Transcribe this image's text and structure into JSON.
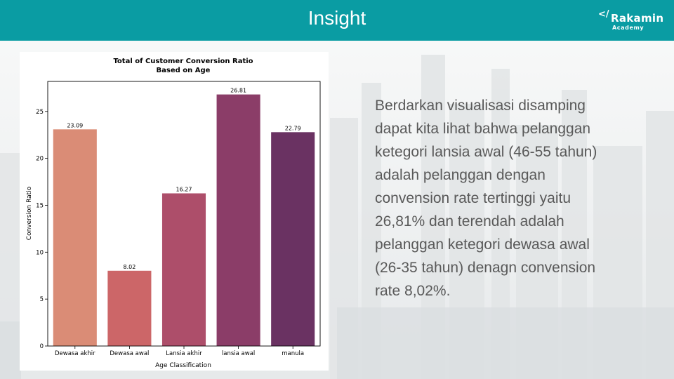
{
  "header": {
    "title": "Insight"
  },
  "logo": {
    "mark": "</",
    "name": "Rakamin",
    "sub": "Academy"
  },
  "chart_data": {
    "type": "bar",
    "title": "Total of Customer Conversion Ratio\nBased on Age",
    "title_lines": [
      "Total of Customer Conversion Ratio",
      "Based on Age"
    ],
    "xlabel": "Age Classification",
    "ylabel": "Conversion Ratio",
    "categories": [
      "Dewasa akhir",
      "Dewasa awal",
      "Lansia akhir",
      "lansia awal",
      "manula"
    ],
    "values": [
      23.09,
      8.02,
      16.27,
      26.81,
      22.79
    ],
    "value_labels": [
      "23.09",
      "8.02",
      "16.27",
      "26.81",
      "22.79"
    ],
    "colors": [
      "#da8c76",
      "#cc6668",
      "#ad4e6a",
      "#8b3d68",
      "#6a3262"
    ],
    "ylim": [
      0,
      28.2
    ],
    "yticks": [
      0,
      5,
      10,
      15,
      20,
      25
    ],
    "grid": false,
    "legend": "none"
  },
  "insight": {
    "lines": [
      "Berdarkan visualisasi disamping",
      "dapat kita lihat bahwa pelanggan",
      "ketegori lansia awal (46-55 tahun)",
      "adalah pelanggan dengan",
      "convension rate tertinggi yaitu",
      "26,81% dan terendah adalah",
      "pelanggan ketegori dewasa awal",
      "(26-35 tahun) denagn convension",
      "rate 8,02%."
    ]
  }
}
